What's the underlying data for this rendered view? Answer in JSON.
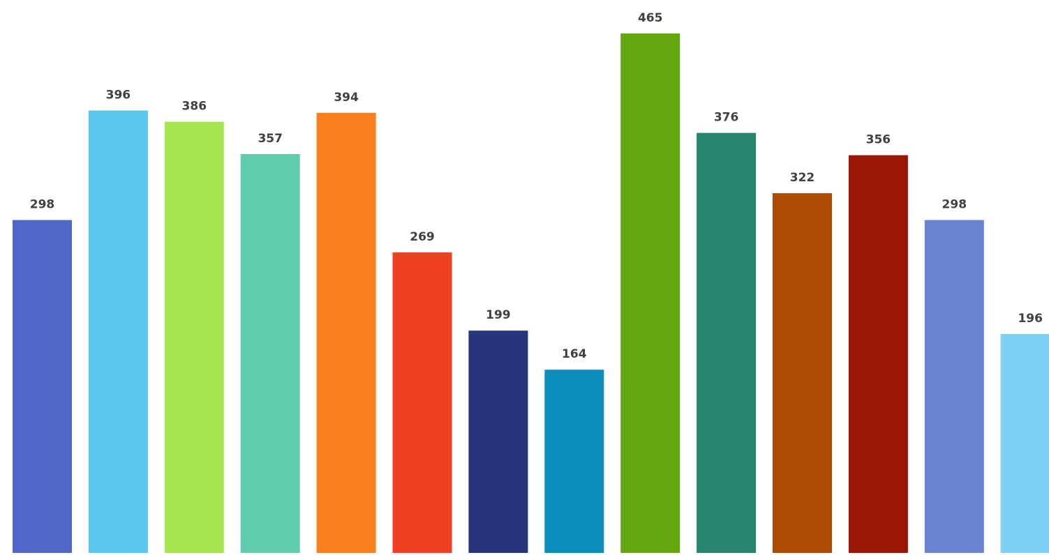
{
  "chart_data": {
    "type": "bar",
    "title": "",
    "xlabel": "",
    "ylabel": "",
    "ylim": [
      0,
      465
    ],
    "grid": false,
    "legend": "none",
    "values": [
      298,
      396,
      386,
      357,
      394,
      269,
      199,
      164,
      465,
      376,
      322,
      356,
      298,
      196
    ],
    "labels": [
      "298",
      "396",
      "386",
      "357",
      "394",
      "269",
      "199",
      "164",
      "465",
      "376",
      "322",
      "356",
      "298",
      "196"
    ],
    "colors": [
      "#4F67C9",
      "#5BC5F0",
      "#A6E54E",
      "#5DCDAE",
      "#F97E1D",
      "#EE4122",
      "#27357A",
      "#0B8EBD",
      "#65A711",
      "#27866E",
      "#AE4B02",
      "#9A1708",
      "#6B82D1",
      "#7ECFF4"
    ]
  }
}
